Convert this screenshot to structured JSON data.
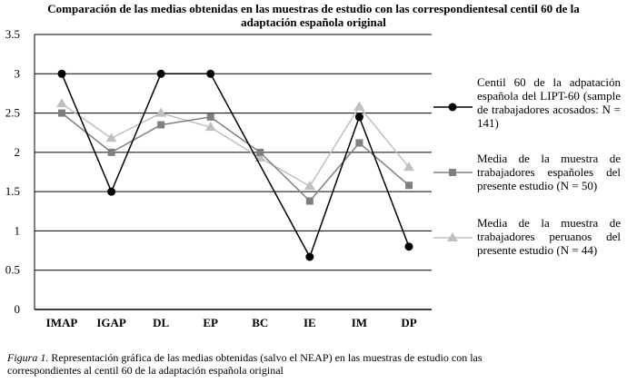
{
  "chart_data": {
    "type": "line",
    "title_line1": "Comparación de las medias obtenidas en las muestras de estudio con las correspondientesal centil 60 de la",
    "title_line2": "adaptación española original",
    "categories": [
      "IMAP",
      "IGAP",
      "DL",
      "EP",
      "BC",
      "IE",
      "IM",
      "DP"
    ],
    "ylim": [
      0,
      3.5
    ],
    "yticks": [
      "0",
      "0.5",
      "1",
      "1.5",
      "2",
      "2.5",
      "3",
      "3.5"
    ],
    "grid": true,
    "legend_position": "right",
    "series": [
      {
        "name": "Centil 60 de la adpatación española del LIPT-60 (sample de trabajadores acosados: N = 141)",
        "marker": "circle",
        "color": "#000000",
        "values": [
          3.0,
          1.5,
          3.0,
          3.0,
          null,
          0.67,
          2.45,
          0.8
        ]
      },
      {
        "name": "Media de la muestra de trabajadores españoles del presente estudio (N = 50)",
        "marker": "square",
        "color": "#7f7f7f",
        "values": [
          2.5,
          2.0,
          2.35,
          2.45,
          2.0,
          1.38,
          2.12,
          1.58
        ]
      },
      {
        "name": "Media de la muestra de trabajadores peruanos del presente estudio (N = 44)",
        "marker": "triangle",
        "color": "#bfbfbf",
        "values": [
          2.62,
          2.18,
          2.5,
          2.32,
          1.93,
          1.57,
          2.58,
          1.81
        ]
      }
    ]
  },
  "caption": {
    "label": "Figura 1.",
    "text": "Representación gráfica de las medias obtenidas (salvo el NEAP) en las muestras de estudio con las correspondientes al centil 60 de la adaptación española original"
  }
}
